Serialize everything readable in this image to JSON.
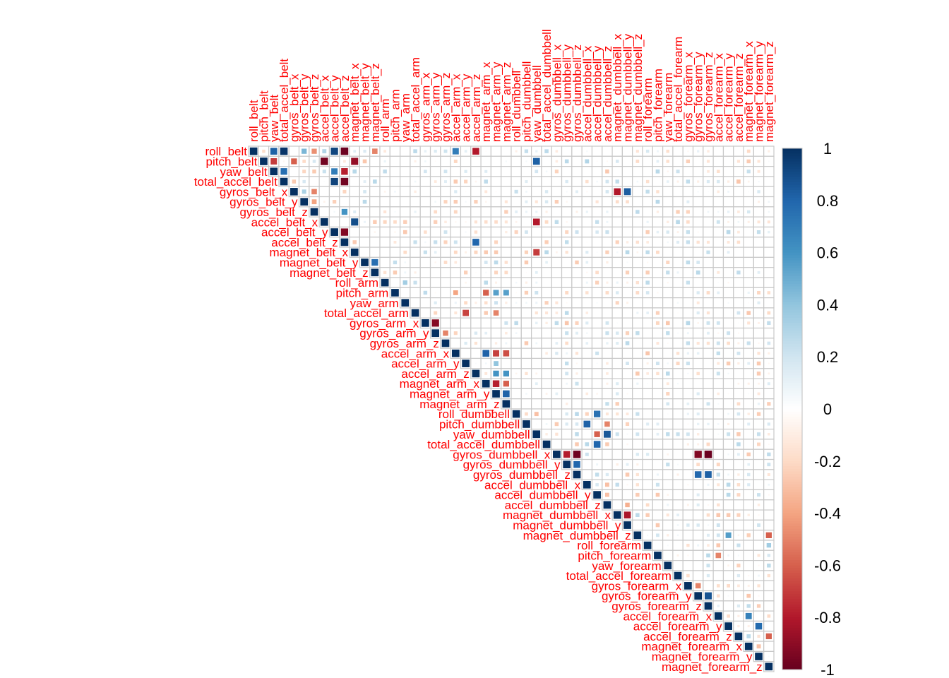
{
  "chart_data": {
    "type": "heatmap",
    "variables": [
      "roll_belt",
      "pitch_belt",
      "yaw_belt",
      "total_accel_belt",
      "gyros_belt_x",
      "gyros_belt_y",
      "gyros_belt_z",
      "accel_belt_x",
      "accel_belt_y",
      "accel_belt_z",
      "magnet_belt_x",
      "magnet_belt_y",
      "magnet_belt_z",
      "roll_arm",
      "pitch_arm",
      "yaw_arm",
      "total_accel_arm",
      "gyros_arm_x",
      "gyros_arm_y",
      "gyros_arm_z",
      "accel_arm_x",
      "accel_arm_y",
      "accel_arm_z",
      "magnet_arm_x",
      "magnet_arm_y",
      "magnet_arm_z",
      "roll_dumbbell",
      "pitch_dumbbell",
      "yaw_dumbbell",
      "total_accel_dumbbell",
      "gyros_dumbbell_x",
      "gyros_dumbbell_y",
      "gyros_dumbbell_z",
      "accel_dumbbell_x",
      "accel_dumbbell_y",
      "accel_dumbbell_z",
      "magnet_dumbbell_x",
      "magnet_dumbbell_y",
      "magnet_dumbbell_z",
      "roll_forearm",
      "pitch_forearm",
      "yaw_forearm",
      "total_accel_forearm",
      "gyros_forearm_x",
      "gyros_forearm_y",
      "gyros_forearm_z",
      "accel_forearm_x",
      "accel_forearm_y",
      "accel_forearm_z",
      "magnet_forearm_x",
      "magnet_forearm_y",
      "magnet_forearm_z"
    ],
    "layout": "upper-triangle",
    "color_range": [
      -1,
      1
    ],
    "colorbar_ticks": [
      "1",
      "0.8",
      "0.6",
      "0.4",
      "0.2",
      "0",
      "-0.2",
      "-0.4",
      "-0.6",
      "-0.8",
      "-1"
    ],
    "colorbar_tick_values": [
      1,
      0.8,
      0.6,
      0.4,
      0.2,
      0,
      -0.2,
      -0.4,
      -0.6,
      -0.8,
      -1
    ],
    "colors": {
      "neg": "#67001f",
      "zero": "#ffffff",
      "pos": "#053061",
      "label": "#ff0000",
      "grid": "#c8c8c8"
    },
    "notable_correlations": [
      {
        "a": "roll_belt",
        "b": "yaw_belt",
        "r": 0.82
      },
      {
        "a": "roll_belt",
        "b": "total_accel_belt",
        "r": 0.98
      },
      {
        "a": "roll_belt",
        "b": "accel_belt_y",
        "r": 0.92
      },
      {
        "a": "roll_belt",
        "b": "accel_belt_z",
        "r": -0.99
      },
      {
        "a": "roll_belt",
        "b": "accel_belt_x",
        "r": 0.3
      },
      {
        "a": "roll_belt",
        "b": "gyros_belt_y",
        "r": 0.46
      },
      {
        "a": "roll_belt",
        "b": "gyros_belt_z",
        "r": -0.46
      },
      {
        "a": "roll_belt",
        "b": "magnet_belt_z",
        "r": -0.5
      },
      {
        "a": "roll_belt",
        "b": "accel_arm_x",
        "r": 0.7
      },
      {
        "a": "roll_belt",
        "b": "accel_arm_z",
        "r": -0.8
      },
      {
        "a": "pitch_belt",
        "b": "yaw_belt",
        "r": -0.7
      },
      {
        "a": "pitch_belt",
        "b": "accel_belt_x",
        "r": -0.97
      },
      {
        "a": "pitch_belt",
        "b": "magnet_belt_x",
        "r": -0.88
      },
      {
        "a": "pitch_belt",
        "b": "gyros_belt_x",
        "r": -0.6
      },
      {
        "a": "pitch_belt",
        "b": "accel_dumbbell_x",
        "r": 0.3
      },
      {
        "a": "pitch_belt",
        "b": "yaw_dumbbell",
        "r": 0.82
      },
      {
        "a": "yaw_belt",
        "b": "total_accel_belt",
        "r": 0.76
      },
      {
        "a": "yaw_belt",
        "b": "accel_belt_z",
        "r": -0.78
      },
      {
        "a": "yaw_belt",
        "b": "accel_belt_y",
        "r": 0.7
      },
      {
        "a": "total_accel_belt",
        "b": "accel_belt_y",
        "r": 0.93
      },
      {
        "a": "total_accel_belt",
        "b": "accel_belt_z",
        "r": -0.97
      },
      {
        "a": "gyros_belt_x",
        "b": "gyros_belt_y",
        "r": 0.32
      },
      {
        "a": "gyros_belt_x",
        "b": "gyros_belt_z",
        "r": -0.5
      },
      {
        "a": "gyros_belt_x",
        "b": "magnet_dumbbell_x",
        "r": -0.8
      },
      {
        "a": "gyros_belt_x",
        "b": "magnet_dumbbell_y",
        "r": 0.83
      },
      {
        "a": "gyros_belt_y",
        "b": "gyros_belt_z",
        "r": -0.4
      },
      {
        "a": "gyros_belt_z",
        "b": "accel_belt_z",
        "r": 0.6
      },
      {
        "a": "accel_belt_x",
        "b": "magnet_belt_x",
        "r": 0.89
      },
      {
        "a": "accel_belt_x",
        "b": "yaw_dumbbell",
        "r": -0.8
      },
      {
        "a": "accel_belt_y",
        "b": "accel_belt_z",
        "r": -0.93
      },
      {
        "a": "accel_belt_z",
        "b": "accel_arm_z",
        "r": 0.8
      },
      {
        "a": "magnet_belt_x",
        "b": "yaw_dumbbell",
        "r": -0.7
      },
      {
        "a": "magnet_belt_y",
        "b": "magnet_belt_z",
        "r": 0.76
      },
      {
        "a": "roll_arm",
        "b": "yaw_arm",
        "r": 0.35
      },
      {
        "a": "pitch_arm",
        "b": "accel_arm_x",
        "r": -0.4
      },
      {
        "a": "pitch_arm",
        "b": "magnet_arm_x",
        "r": -0.6
      },
      {
        "a": "pitch_arm",
        "b": "magnet_arm_y",
        "r": 0.55
      },
      {
        "a": "pitch_arm",
        "b": "magnet_arm_z",
        "r": 0.55
      },
      {
        "a": "total_accel_arm",
        "b": "accel_arm_y",
        "r": -0.68
      },
      {
        "a": "total_accel_arm",
        "b": "magnet_arm_y",
        "r": -0.5
      },
      {
        "a": "gyros_arm_x",
        "b": "gyros_arm_y",
        "r": -0.92
      },
      {
        "a": "gyros_arm_y",
        "b": "gyros_arm_z",
        "r": -0.5
      },
      {
        "a": "accel_arm_x",
        "b": "magnet_arm_x",
        "r": 0.81
      },
      {
        "a": "accel_arm_x",
        "b": "magnet_arm_y",
        "r": -0.69
      },
      {
        "a": "accel_arm_x",
        "b": "magnet_arm_z",
        "r": -0.65
      },
      {
        "a": "accel_arm_y",
        "b": "magnet_arm_y",
        "r": 0.4
      },
      {
        "a": "accel_arm_z",
        "b": "magnet_arm_y",
        "r": 0.6
      },
      {
        "a": "accel_arm_z",
        "b": "magnet_arm_z",
        "r": 0.6
      },
      {
        "a": "magnet_arm_x",
        "b": "magnet_arm_y",
        "r": -0.78
      },
      {
        "a": "magnet_arm_x",
        "b": "magnet_arm_z",
        "r": -0.6
      },
      {
        "a": "magnet_arm_y",
        "b": "magnet_arm_z",
        "r": 0.81
      },
      {
        "a": "roll_dumbbell",
        "b": "accel_dumbbell_y",
        "r": 0.75
      },
      {
        "a": "roll_dumbbell",
        "b": "yaw_dumbbell",
        "r": -0.3
      },
      {
        "a": "pitch_dumbbell",
        "b": "accel_dumbbell_x",
        "r": 0.81
      },
      {
        "a": "pitch_dumbbell",
        "b": "accel_dumbbell_z",
        "r": -0.5
      },
      {
        "a": "yaw_dumbbell",
        "b": "accel_dumbbell_z",
        "r": 0.85
      },
      {
        "a": "yaw_dumbbell",
        "b": "accel_dumbbell_y",
        "r": -0.6
      },
      {
        "a": "total_accel_dumbbell",
        "b": "accel_dumbbell_y",
        "r": 0.8
      },
      {
        "a": "gyros_dumbbell_x",
        "b": "gyros_dumbbell_y",
        "r": -0.79
      },
      {
        "a": "gyros_dumbbell_x",
        "b": "gyros_dumbbell_z",
        "r": -0.98
      },
      {
        "a": "gyros_dumbbell_x",
        "b": "gyros_forearm_y",
        "r": -0.93
      },
      {
        "a": "gyros_dumbbell_x",
        "b": "gyros_forearm_z",
        "r": -0.99
      },
      {
        "a": "gyros_dumbbell_y",
        "b": "gyros_dumbbell_z",
        "r": 0.8
      },
      {
        "a": "gyros_dumbbell_z",
        "b": "gyros_forearm_y",
        "r": 0.79
      },
      {
        "a": "gyros_dumbbell_z",
        "b": "gyros_forearm_z",
        "r": 0.82
      },
      {
        "a": "accel_dumbbell_x",
        "b": "accel_dumbbell_z",
        "r": -0.3
      },
      {
        "a": "accel_dumbbell_y",
        "b": "accel_dumbbell_z",
        "r": -0.3
      },
      {
        "a": "accel_dumbbell_z",
        "b": "magnet_dumbbell_y",
        "r": -0.36
      },
      {
        "a": "magnet_dumbbell_x",
        "b": "magnet_dumbbell_y",
        "r": -0.82
      },
      {
        "a": "magnet_dumbbell_z",
        "b": "magnet_forearm_z",
        "r": -0.6
      },
      {
        "a": "magnet_dumbbell_z",
        "b": "accel_forearm_y",
        "r": 0.56
      },
      {
        "a": "roll_forearm",
        "b": "magnet_forearm_z",
        "r": 0.35
      },
      {
        "a": "pitch_forearm",
        "b": "accel_forearm_x",
        "r": -0.5
      },
      {
        "a": "gyros_forearm_x",
        "b": "gyros_forearm_y",
        "r": -0.5
      },
      {
        "a": "gyros_forearm_y",
        "b": "gyros_forearm_z",
        "r": 0.87
      },
      {
        "a": "accel_forearm_x",
        "b": "magnet_forearm_x",
        "r": 0.68
      },
      {
        "a": "accel_forearm_y",
        "b": "magnet_forearm_y",
        "r": 0.78
      },
      {
        "a": "accel_forearm_z",
        "b": "magnet_forearm_z",
        "r": -0.6
      },
      {
        "a": "magnet_forearm_x",
        "b": "magnet_forearm_y",
        "r": -0.3
      }
    ]
  }
}
